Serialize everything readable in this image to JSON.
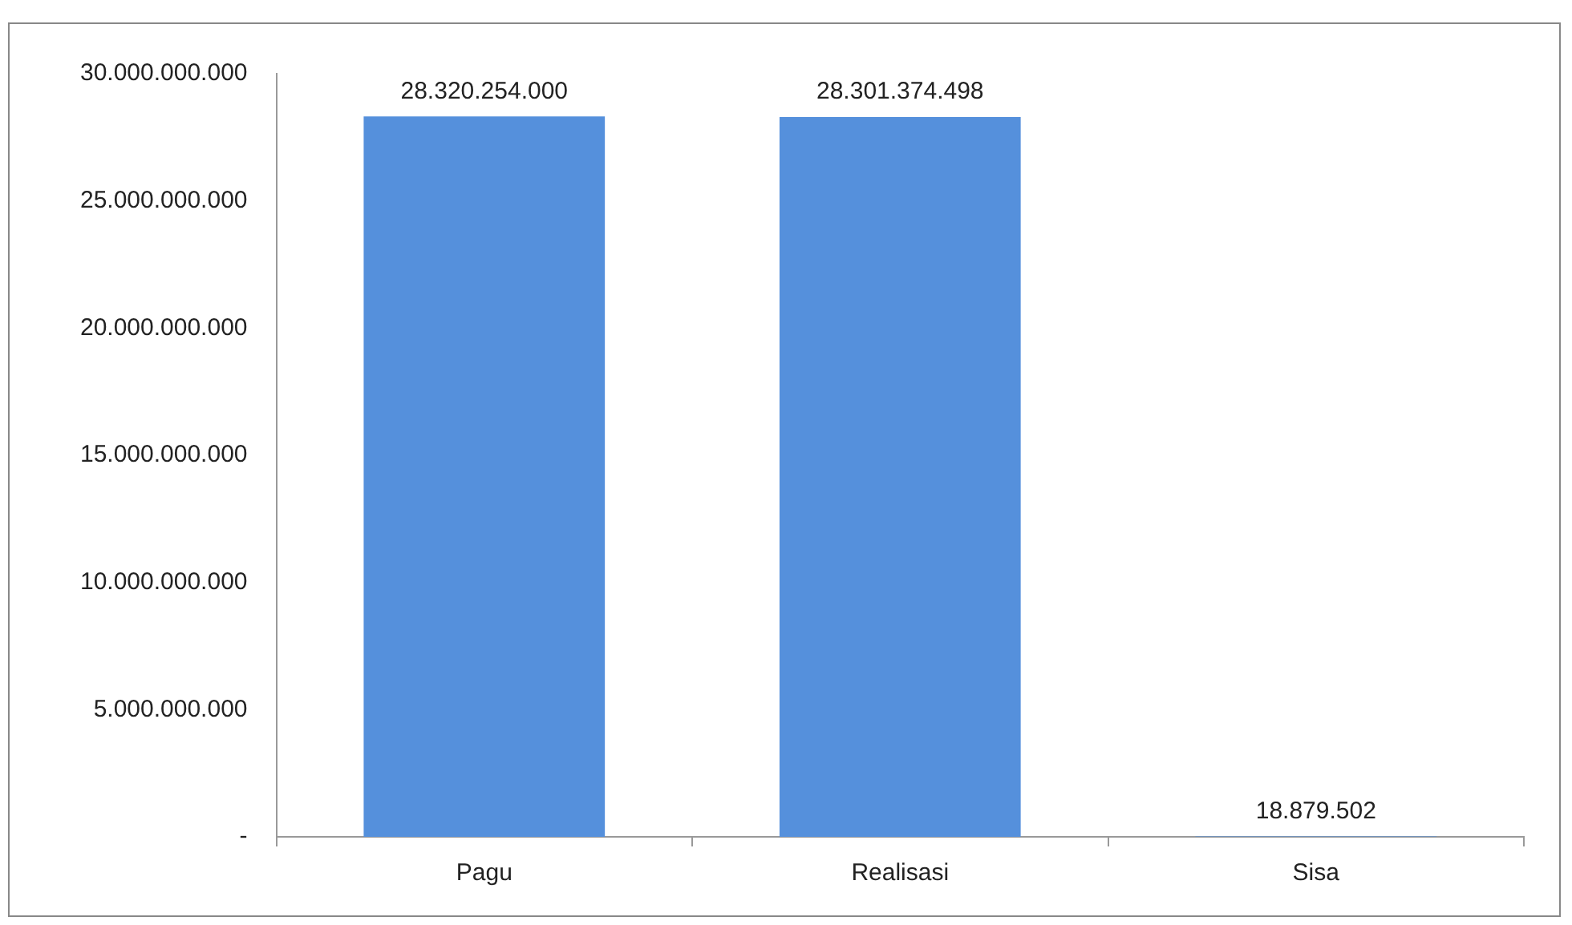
{
  "chart_data": {
    "type": "bar",
    "categories": [
      "Pagu",
      "Realisasi",
      "Sisa"
    ],
    "values": [
      28320254000,
      28301374498,
      18879502
    ],
    "color": "#5590dc",
    "value_labels": [
      "28.320.254.000",
      "28.301.374.498",
      "18.879.502"
    ],
    "ylim": [
      0,
      30000000000
    ],
    "yticks": [
      {
        "value": 0,
        "label": "-"
      },
      {
        "value": 5000000000,
        "label": "5.000.000.000"
      },
      {
        "value": 10000000000,
        "label": "10.000.000.000"
      },
      {
        "value": 15000000000,
        "label": "15.000.000.000"
      },
      {
        "value": 20000000000,
        "label": "20.000.000.000"
      },
      {
        "value": 25000000000,
        "label": "25.000.000.000"
      },
      {
        "value": 30000000000,
        "label": "30.000.000.000"
      }
    ],
    "grid": false,
    "legend": false
  }
}
